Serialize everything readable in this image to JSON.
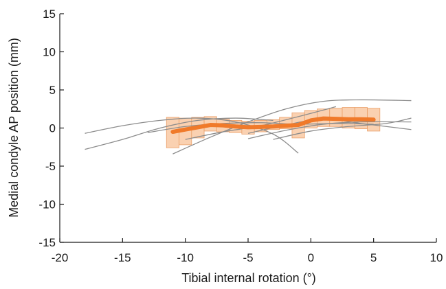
{
  "chart_data": {
    "type": "line",
    "title": "",
    "xlabel": "Tibial internal rotation (°)",
    "ylabel": "Medial condyle AP position (mm)",
    "xlim": [
      -20,
      10
    ],
    "ylim": [
      -15,
      15
    ],
    "xticks": [
      -20,
      -15,
      -10,
      -5,
      0,
      5,
      10
    ],
    "yticks": [
      -15,
      -10,
      -5,
      0,
      5,
      10,
      15
    ],
    "grid": false,
    "colors": {
      "mean_line": "#f07a2a",
      "band_fill": "#f9c9a3",
      "band_stroke": "#eaa06a",
      "subject_lines": "#8c8c8c",
      "axis": "#1a1a1a"
    },
    "mean_series": {
      "x": [
        -11,
        -10,
        -9,
        -8,
        -7,
        -6,
        -5,
        -4,
        -3,
        -2,
        -1,
        0,
        1,
        2,
        3,
        4,
        5
      ],
      "y": [
        -0.5,
        -0.2,
        0.1,
        0.4,
        0.35,
        0.2,
        0.1,
        0.15,
        0.2,
        0.3,
        0.4,
        1.0,
        1.25,
        1.2,
        1.15,
        1.15,
        1.1
      ]
    },
    "band": {
      "x": [
        -11,
        -10,
        -9,
        -8,
        -7,
        -6,
        -5,
        -4,
        -3,
        -2,
        -1,
        0,
        1,
        2,
        3,
        4,
        5
      ],
      "low": [
        -2.6,
        -2.2,
        -1.3,
        -0.4,
        -0.5,
        -0.6,
        -0.8,
        -0.5,
        -0.2,
        -0.1,
        -1.3,
        0.0,
        0.2,
        0.2,
        0.0,
        -0.1,
        -0.4
      ],
      "high": [
        1.4,
        1.3,
        1.4,
        1.5,
        1.2,
        1.0,
        0.9,
        1.0,
        1.1,
        1.4,
        2.0,
        2.3,
        2.5,
        2.6,
        2.7,
        2.7,
        2.6
      ]
    },
    "subject_series": [
      {
        "x": [
          -18,
          -15,
          -12,
          -9,
          -6,
          -3,
          -1
        ],
        "y": [
          -0.7,
          0.3,
          1.0,
          1.3,
          0.8,
          -0.8,
          -3.3
        ]
      },
      {
        "x": [
          -18,
          -15,
          -12,
          -9,
          -6,
          -3
        ],
        "y": [
          -2.8,
          -1.5,
          0.0,
          1.0,
          1.3,
          1.0
        ]
      },
      {
        "x": [
          -13,
          -10,
          -7,
          -4,
          -1,
          2,
          5
        ],
        "y": [
          -0.6,
          0.2,
          0.6,
          0.7,
          0.5,
          0.6,
          0.5
        ]
      },
      {
        "x": [
          -11,
          -8,
          -5,
          -2,
          1,
          4,
          8
        ],
        "y": [
          -3.4,
          -1.2,
          0.8,
          2.5,
          3.5,
          3.7,
          3.6
        ]
      },
      {
        "x": [
          -5,
          -2,
          1,
          4,
          8
        ],
        "y": [
          -1.4,
          -0.3,
          0.5,
          0.8,
          0.8
        ]
      },
      {
        "x": [
          -5,
          -2,
          1,
          4,
          8
        ],
        "y": [
          -0.7,
          0.4,
          1.2,
          0.6,
          -0.2
        ]
      },
      {
        "x": [
          -10,
          -7,
          -4,
          -1,
          2
        ],
        "y": [
          -1.5,
          -0.5,
          0.3,
          1.5,
          2.8
        ]
      },
      {
        "x": [
          -3,
          0,
          3,
          6,
          8
        ],
        "y": [
          -1.5,
          -0.4,
          0.2,
          0.6,
          1.3
        ]
      }
    ]
  }
}
